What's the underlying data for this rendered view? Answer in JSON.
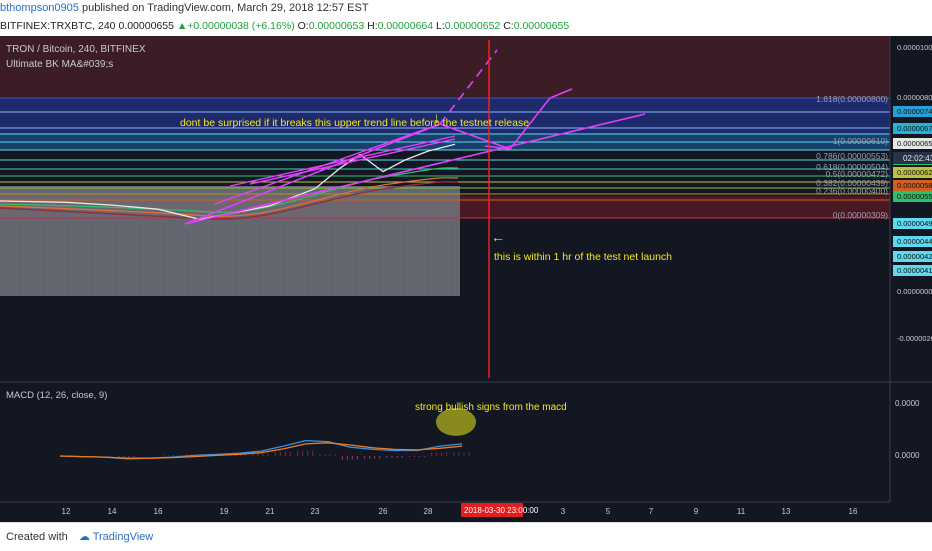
{
  "publish_line": {
    "user": "bthompson0905",
    "text": " published on TradingView.com, March 29, 2018 12:57 EST"
  },
  "symbol_line": {
    "symbol": "BITFINEX:TRXBTC, 240",
    "price": "0.00000655",
    "change": "+0.00000038 (+6.16%)",
    "o_label": "O:",
    "o_val": "0.00000653",
    "h_label": "H:",
    "h_val": "0.00000664",
    "l_label": "L:",
    "l_val": "0.00000652",
    "c_label": "C:",
    "c_val": "0.00000655"
  },
  "legend": {
    "title": "TRON / Bitcoin, 240, BITFINEX",
    "indicator": "Ultimate BK MA&#039;s"
  },
  "annotations": {
    "trendline_note": "dont be surprised if it breaks this upper trend line before the testnet release",
    "testnet_note": "this is within 1 hr of the test net launch",
    "macd_note": "strong bullish signs from the macd"
  },
  "macd_label": "MACD (12, 26, close, 9)",
  "footer": {
    "created_with": "Created with",
    "brand": "TradingView"
  },
  "colors": {
    "main_bg": "#131722",
    "upper_zone": "#3c1d26",
    "lower_zone": "#4a1822",
    "trendline": "#e040fb",
    "vertical_marker": "#ff1f1f",
    "annotation": "#f5e627",
    "macd_line": "#3a8fe0",
    "signal_line": "#f07c1e"
  },
  "chart_data": [
    {
      "type": "line",
      "title": "TRON / Bitcoin, 240, BITFINEX",
      "x_tick_labels": [
        "12",
        "14",
        "16",
        "19",
        "21",
        "23",
        "26",
        "28",
        "3",
        "5",
        "7",
        "9",
        "11",
        "13",
        "16"
      ],
      "highlighted_x_label": "2018-03-30 23:00:00",
      "y_tick_labels": [
        "0.00001000",
        "0.00000800",
        "0.00000748",
        "0.00000670",
        "0.00000655",
        "0.00000653",
        "0.00000621",
        "0.00000586",
        "0.00000550",
        "0.00000494",
        "0.00000446",
        "0.00000429",
        "0.00000414",
        "0.00000000",
        "-0.00000200"
      ],
      "fib_levels": [
        {
          "label": "1.618(0.00000800)",
          "value": 8e-06
        },
        {
          "label": "1(0.00000610)",
          "value": 6.1e-06
        },
        {
          "label": "0.786(0.00000553)",
          "value": 5.53e-06
        },
        {
          "label": "0.618(0.00000504)",
          "value": 5.04e-06
        },
        {
          "label": "0.5(0.00000472)",
          "value": 4.72e-06
        },
        {
          "label": "0.382(0.00000439)",
          "value": 4.39e-06
        },
        {
          "label": "0.236(0.00000400)",
          "value": 4e-06
        },
        {
          "label": "0(0.00000309)",
          "value": 3.09e-06
        }
      ],
      "price_series": [
        {
          "x": "12",
          "y": 5.7e-06
        },
        {
          "x": "14",
          "y": 5.66e-06
        },
        {
          "x": "16",
          "y": 5.6e-06
        },
        {
          "x": "18",
          "y": 5.45e-06
        },
        {
          "x": "19",
          "y": 5.52e-06
        },
        {
          "x": "21",
          "y": 5.65e-06
        },
        {
          "x": "23",
          "y": 5.9e-06
        },
        {
          "x": "24",
          "y": 6.2e-06
        },
        {
          "x": "25",
          "y": 6.4e-06
        },
        {
          "x": "26",
          "y": 6.15e-06
        },
        {
          "x": "27",
          "y": 6.32e-06
        },
        {
          "x": "28",
          "y": 6.45e-06
        },
        {
          "x": "29",
          "y": 6.55e-06
        }
      ]
    },
    {
      "type": "line",
      "title": "MACD (12, 26, close, 9)",
      "y_tick_labels": [
        "0.0000",
        "0.0000"
      ],
      "series": [
        {
          "name": "MACD",
          "values": [
            0,
            -0.01,
            -0.02,
            -0.05,
            -0.04,
            -0.02,
            0.01,
            0.03,
            0.05,
            0.09,
            0.18,
            0.28,
            0.26,
            0.16,
            0.12,
            0.1,
            0.1,
            0.18,
            0.22
          ]
        },
        {
          "name": "Signal",
          "values": [
            0,
            -0.01,
            -0.02,
            -0.04,
            -0.04,
            -0.03,
            -0.01,
            0.01,
            0.03,
            0.06,
            0.13,
            0.22,
            0.24,
            0.2,
            0.15,
            0.12,
            0.11,
            0.14,
            0.18
          ]
        }
      ]
    }
  ]
}
